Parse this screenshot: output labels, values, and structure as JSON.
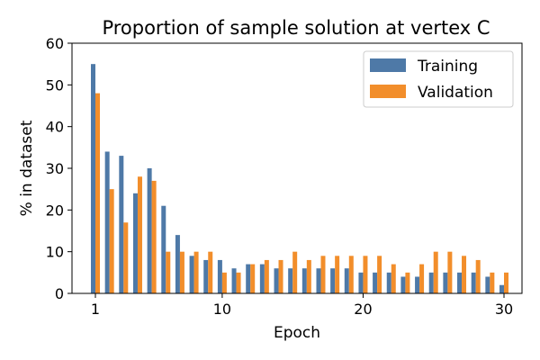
{
  "chart_data": {
    "type": "bar",
    "title": "Proportion of sample solution at vertex C",
    "xlabel": "Epoch",
    "ylabel": "% in dataset",
    "ylim": [
      0,
      60
    ],
    "yticks": [
      0,
      10,
      20,
      30,
      40,
      50,
      60
    ],
    "xticks": [
      1,
      10,
      20,
      30
    ],
    "categories": [
      1,
      2,
      3,
      4,
      5,
      6,
      7,
      8,
      9,
      10,
      11,
      12,
      13,
      14,
      15,
      16,
      17,
      18,
      19,
      20,
      21,
      22,
      23,
      24,
      25,
      26,
      27,
      28,
      29,
      30
    ],
    "series": [
      {
        "name": "Training",
        "color": "#4e79a7",
        "values": [
          55,
          34,
          33,
          24,
          30,
          21,
          14,
          9,
          8,
          8,
          6,
          7,
          7,
          6,
          6,
          6,
          6,
          6,
          6,
          5,
          5,
          5,
          4,
          4,
          5,
          5,
          5,
          5,
          4,
          2
        ]
      },
      {
        "name": "Validation",
        "color": "#f28e2b",
        "values": [
          48,
          25,
          17,
          28,
          27,
          10,
          10,
          10,
          10,
          5,
          5,
          7,
          8,
          8,
          10,
          8,
          9,
          9,
          9,
          9,
          9,
          7,
          5,
          7,
          10,
          10,
          9,
          8,
          5,
          5
        ]
      }
    ],
    "legend": {
      "position": "top-right"
    },
    "grid": false
  }
}
